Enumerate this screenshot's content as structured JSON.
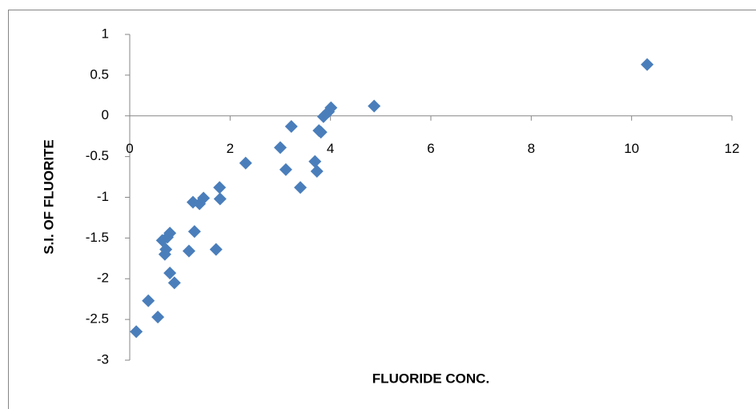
{
  "chart_data": {
    "type": "scatter",
    "xlabel": "FLUORIDE CONC.",
    "ylabel": "S.I. OF FLUORITE",
    "color": "#4a7ebb",
    "series": [
      {
        "name": null,
        "color": "#4a7ebb",
        "x": [
          0.13,
          0.37,
          0.56,
          0.65,
          0.72,
          0.7,
          0.8,
          0.75,
          0.8,
          0.89,
          1.18,
          1.26,
          1.29,
          1.39,
          1.47,
          1.72,
          1.79,
          1.8,
          2.31,
          3.0,
          3.11,
          3.22,
          3.4,
          3.69,
          3.73,
          3.77,
          3.81,
          3.86,
          3.96,
          4.01,
          4.87,
          10.31
        ],
        "values": [
          -2.65,
          -2.27,
          -2.47,
          -1.53,
          -1.64,
          -1.7,
          -1.44,
          -1.49,
          -1.93,
          -2.05,
          -1.66,
          -1.06,
          -1.42,
          -1.08,
          -1.01,
          -1.64,
          -0.88,
          -1.02,
          -0.58,
          -0.39,
          -0.66,
          -0.13,
          -0.88,
          -0.56,
          -0.68,
          -0.18,
          -0.2,
          -0.01,
          0.05,
          0.1,
          0.12,
          0.63
        ]
      }
    ],
    "xlim": [
      0,
      12
    ],
    "xticks": [
      0,
      2,
      4,
      6,
      8,
      10,
      12
    ],
    "ylim": [
      -3,
      1
    ],
    "yticks": [
      1,
      0.5,
      0,
      -0.5,
      -1,
      -1.5,
      -2,
      -2.5,
      -3
    ],
    "grid": false
  }
}
